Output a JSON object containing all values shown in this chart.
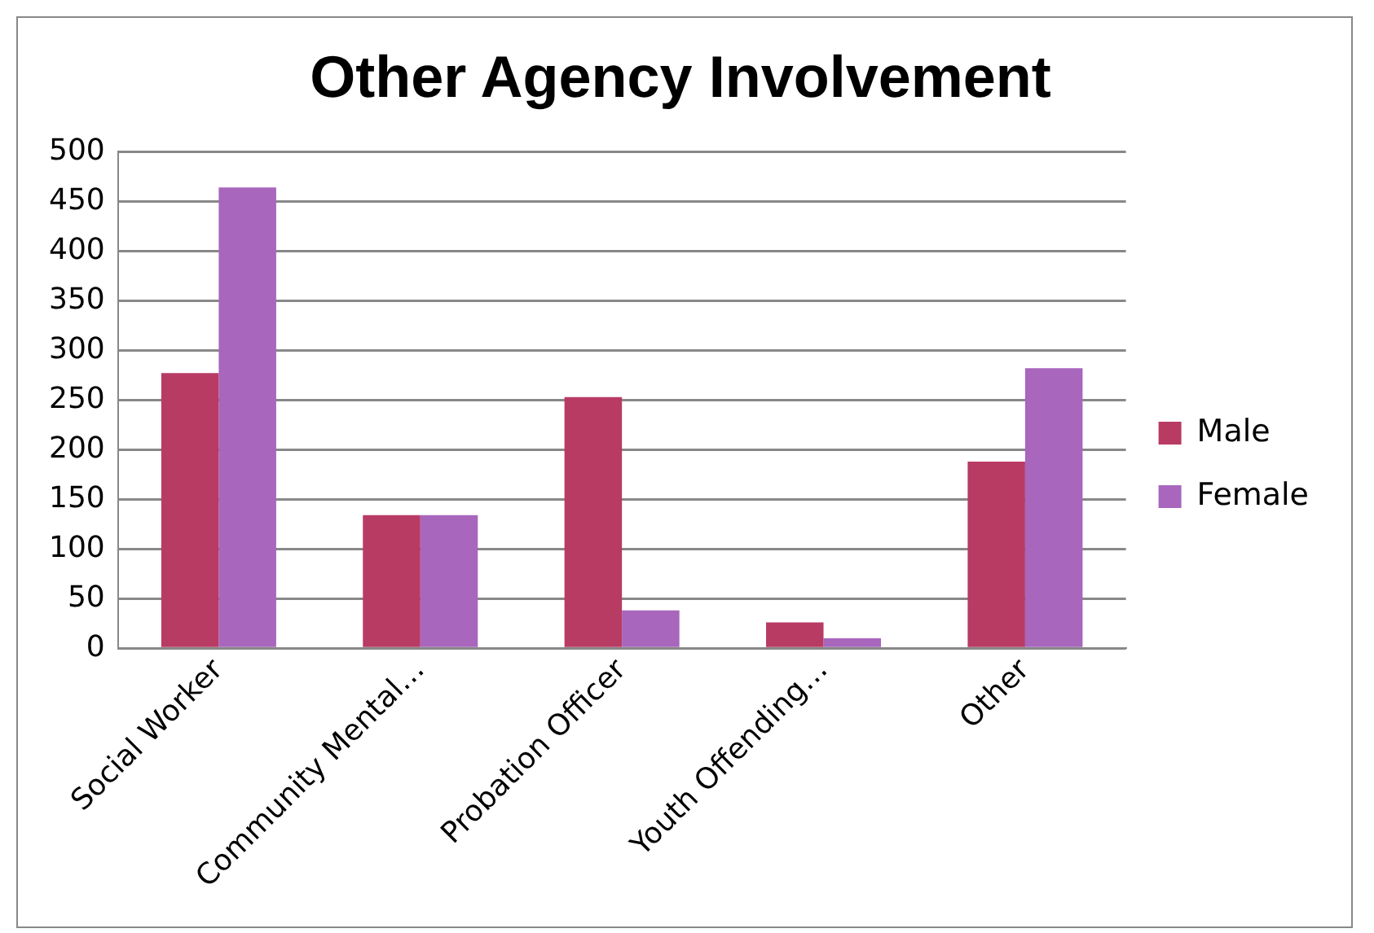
{
  "chart_data": {
    "type": "bar",
    "title": "Other Agency Involvement",
    "categories": [
      "Social Worker",
      "Community Mental…",
      "Probation Officer",
      "Youth Offending…",
      "Other"
    ],
    "series": [
      {
        "name": "Male",
        "color": "#b83b64",
        "values": [
          277,
          134,
          253,
          26,
          188
        ]
      },
      {
        "name": "Female",
        "color": "#a866bd",
        "values": [
          464,
          134,
          38,
          10,
          282
        ]
      }
    ],
    "ylim": [
      0,
      500
    ],
    "yticks": [
      0,
      50,
      100,
      150,
      200,
      250,
      300,
      350,
      400,
      450,
      500
    ],
    "grid": "y",
    "legend": "right"
  }
}
